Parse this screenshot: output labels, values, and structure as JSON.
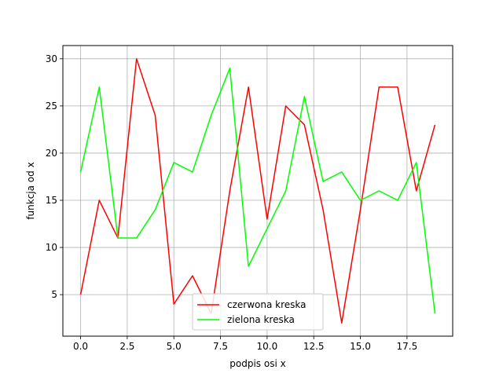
{
  "chart_data": {
    "type": "line",
    "xlabel": "podpis osi x",
    "ylabel": "funkcja od x",
    "xlim": [
      -0.95,
      19.95
    ],
    "ylim": [
      0.6,
      31.4
    ],
    "xticks": [
      0.0,
      2.5,
      5.0,
      7.5,
      10.0,
      12.5,
      15.0,
      17.5
    ],
    "xtick_labels": [
      "0.0",
      "2.5",
      "5.0",
      "7.5",
      "10.0",
      "12.5",
      "15.0",
      "17.5"
    ],
    "yticks": [
      5,
      10,
      15,
      20,
      25,
      30
    ],
    "ytick_labels": [
      "5",
      "10",
      "15",
      "20",
      "25",
      "30"
    ],
    "grid": true,
    "legend_position": "bottom-center",
    "x": [
      0,
      1,
      2,
      3,
      4,
      5,
      6,
      7,
      8,
      9,
      10,
      11,
      12,
      13,
      14,
      15,
      16,
      17,
      18,
      19
    ],
    "series": [
      {
        "name": "czerwona kreska",
        "color": "#ff0000",
        "values": [
          5,
          15,
          11,
          30,
          24,
          4,
          7,
          3,
          16,
          27,
          13,
          25,
          23,
          14,
          2,
          14,
          27,
          27,
          16,
          23
        ]
      },
      {
        "name": "zielona kreska",
        "color": "#00ff00",
        "values": [
          18,
          27,
          11,
          11,
          14,
          19,
          18,
          24,
          29,
          8,
          12,
          16,
          26,
          17,
          18,
          15,
          16,
          15,
          19,
          3
        ]
      }
    ]
  }
}
